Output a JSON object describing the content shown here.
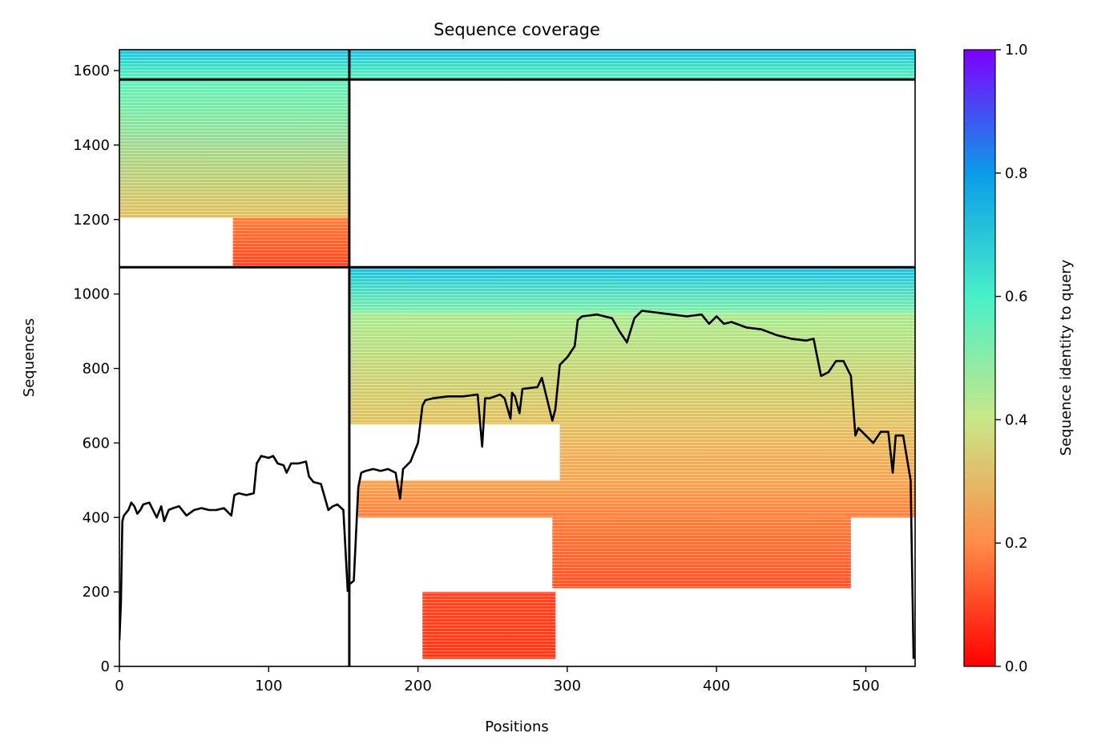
{
  "chart_data": {
    "type": "heatmap",
    "title": "Sequence coverage",
    "xlabel": "Positions",
    "ylabel": "Sequences",
    "xlim": [
      0,
      533
    ],
    "ylim": [
      0,
      1656
    ],
    "x_ticks": [
      0,
      100,
      200,
      300,
      400,
      500
    ],
    "y_ticks": [
      0,
      200,
      400,
      600,
      800,
      1000,
      1200,
      1400,
      1600
    ],
    "grid": false,
    "colorbar": {
      "label": "Sequence identity to query",
      "range": [
        0.0,
        1.0
      ],
      "ticks": [
        "0.0",
        "0.2",
        "0.4",
        "0.6",
        "0.8",
        "1.0"
      ],
      "colormap": "rainbow_r",
      "stops": [
        "#ff0000",
        "#ff8c47",
        "#c9e787",
        "#47f0c8",
        "#0a9be9",
        "#7f00ff"
      ]
    },
    "chain_boundary_x": 154,
    "block_boundaries_y": [
      1072,
      1576
    ],
    "coverage_blocks": [
      {
        "x": [
          0,
          154
        ],
        "y": [
          1576,
          1656
        ],
        "identity": [
          0.55,
          0.72
        ]
      },
      {
        "x": [
          154,
          533
        ],
        "y": [
          1576,
          1656
        ],
        "identity": [
          0.55,
          0.72
        ]
      },
      {
        "x": [
          0,
          154
        ],
        "y": [
          1205,
          1576
        ],
        "identity": [
          0.31,
          0.55
        ]
      },
      {
        "x": [
          76,
          154
        ],
        "y": [
          1072,
          1205
        ],
        "identity": [
          0.1,
          0.18
        ]
      },
      {
        "x": [
          154,
          533
        ],
        "y": [
          950,
          1072
        ],
        "identity": [
          0.5,
          0.72
        ]
      },
      {
        "x": [
          154,
          533
        ],
        "y": [
          650,
          950
        ],
        "identity": [
          0.31,
          0.45
        ]
      },
      {
        "x": [
          295,
          533
        ],
        "y": [
          500,
          650
        ],
        "identity": [
          0.26,
          0.31
        ]
      },
      {
        "x": [
          160,
          533
        ],
        "y": [
          400,
          500
        ],
        "identity": [
          0.18,
          0.26
        ]
      },
      {
        "x": [
          290,
          490
        ],
        "y": [
          210,
          400
        ],
        "identity": [
          0.12,
          0.18
        ]
      },
      {
        "x": [
          203,
          292
        ],
        "y": [
          20,
          200
        ],
        "identity": [
          0.08,
          0.1
        ]
      }
    ],
    "series": [
      {
        "x": [
          0,
          1,
          2,
          3,
          4,
          6,
          8,
          10,
          12,
          14,
          16,
          20,
          25,
          28,
          30,
          33,
          36,
          40,
          45,
          50,
          55,
          60,
          65,
          70,
          75,
          77,
          80,
          85,
          90,
          92,
          95,
          100,
          103,
          106,
          110,
          112,
          115,
          120,
          125,
          127,
          130,
          135,
          140,
          143,
          146,
          150,
          153
        ],
        "y": [
          70,
          170,
          390,
          405,
          410,
          420,
          440,
          430,
          410,
          420,
          435,
          440,
          400,
          430,
          390,
          420,
          425,
          430,
          405,
          420,
          425,
          420,
          420,
          425,
          405,
          460,
          465,
          460,
          465,
          545,
          565,
          560,
          565,
          545,
          540,
          520,
          545,
          545,
          550,
          510,
          495,
          490,
          420,
          430,
          435,
          420,
          200
        ]
      },
      {
        "x": [
          154,
          157,
          160,
          162,
          165,
          170,
          175,
          180,
          185,
          188,
          190,
          195,
          200,
          203,
          205,
          210,
          220,
          230,
          240,
          243,
          245,
          248,
          255,
          258,
          262,
          263,
          265,
          268,
          270,
          280,
          283,
          290,
          292,
          295,
          300,
          305,
          307,
          310,
          320,
          330,
          335,
          340,
          345,
          350,
          360,
          370,
          380,
          390,
          395,
          400,
          405,
          410,
          420,
          430,
          440,
          450,
          460,
          465,
          470,
          475,
          480,
          485,
          490,
          493,
          495,
          500,
          505,
          510,
          515,
          518,
          520,
          525,
          530,
          532
        ],
        "y": [
          220,
          230,
          480,
          520,
          525,
          530,
          525,
          530,
          520,
          450,
          530,
          550,
          600,
          700,
          715,
          720,
          725,
          725,
          730,
          590,
          720,
          720,
          730,
          720,
          665,
          735,
          725,
          680,
          745,
          750,
          775,
          660,
          690,
          810,
          830,
          860,
          930,
          940,
          945,
          935,
          900,
          870,
          935,
          955,
          950,
          945,
          940,
          945,
          920,
          940,
          920,
          925,
          910,
          905,
          890,
          880,
          875,
          880,
          780,
          790,
          820,
          820,
          780,
          620,
          640,
          620,
          600,
          630,
          630,
          520,
          620,
          620,
          500,
          20
        ]
      }
    ]
  }
}
